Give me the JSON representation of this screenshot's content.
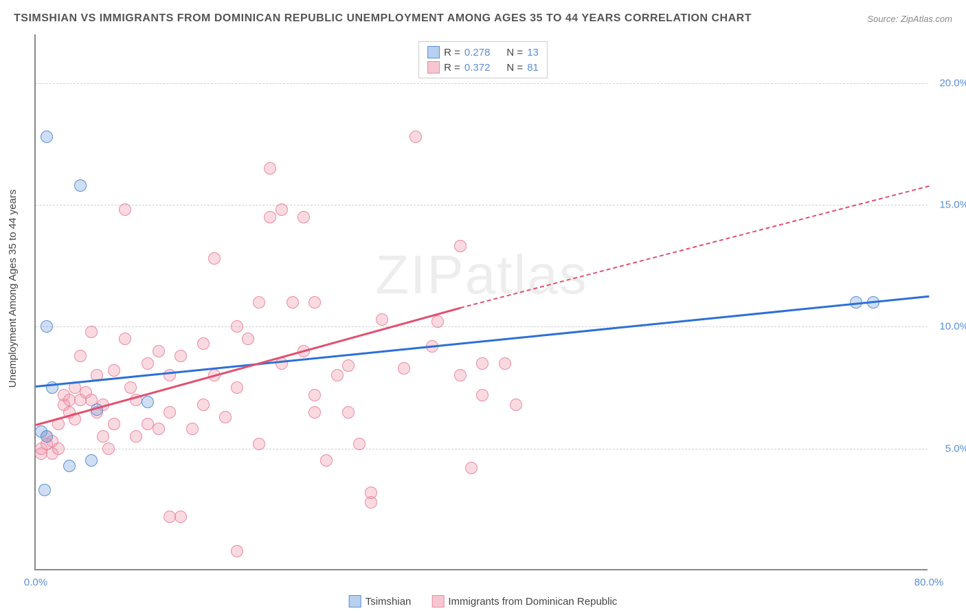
{
  "title": "TSIMSHIAN VS IMMIGRANTS FROM DOMINICAN REPUBLIC UNEMPLOYMENT AMONG AGES 35 TO 44 YEARS CORRELATION CHART",
  "source_label": "Source:",
  "source_name": "ZipAtlas.com",
  "y_axis_title": "Unemployment Among Ages 35 to 44 years",
  "watermark": "ZIPatlas",
  "chart": {
    "type": "scatter",
    "xlim": [
      0,
      80
    ],
    "ylim": [
      0,
      22
    ],
    "x_ticks": [
      0,
      80
    ],
    "x_tick_labels": [
      "0.0%",
      "80.0%"
    ],
    "y_ticks": [
      5,
      10,
      15,
      20
    ],
    "y_tick_labels": [
      "5.0%",
      "10.0%",
      "15.0%",
      "20.0%"
    ],
    "background_color": "#ffffff",
    "grid_color": "#d0d0d0",
    "series": [
      {
        "name": "Tsimshian",
        "R": "0.278",
        "N": "13",
        "marker_fill": "rgba(120,160,220,0.35)",
        "marker_stroke": "#5b8fd6",
        "swatch_fill": "#b8d0ef",
        "swatch_border": "#5b8fd6",
        "trend_color": "#2d70d6",
        "trend": {
          "x1": 0,
          "y1": 7.6,
          "x2": 80,
          "y2": 11.3
        },
        "points": [
          [
            1.0,
            17.8
          ],
          [
            4.0,
            15.8
          ],
          [
            1.0,
            10.0
          ],
          [
            1.5,
            7.5
          ],
          [
            0.5,
            5.7
          ],
          [
            1.0,
            5.5
          ],
          [
            3.0,
            4.3
          ],
          [
            5.0,
            4.5
          ],
          [
            0.8,
            3.3
          ],
          [
            10.0,
            6.9
          ],
          [
            5.5,
            6.6
          ],
          [
            73.5,
            11.0
          ],
          [
            75.0,
            11.0
          ]
        ]
      },
      {
        "name": "Immigrants from Dominican Republic",
        "R": "0.372",
        "N": "81",
        "marker_fill": "rgba(240,150,170,0.35)",
        "marker_stroke": "#e88aa0",
        "swatch_fill": "#f6c7d2",
        "swatch_border": "#e88aa0",
        "trend_color": "#e05070",
        "trend": {
          "x1": 0,
          "y1": 6.0,
          "x2": 38,
          "y2": 10.8
        },
        "trend_dash": {
          "x1": 38,
          "y1": 10.8,
          "x2": 80,
          "y2": 15.8
        },
        "points": [
          [
            0.5,
            4.8
          ],
          [
            0.5,
            5.0
          ],
          [
            1.0,
            5.2
          ],
          [
            1.0,
            5.5
          ],
          [
            1.5,
            5.3
          ],
          [
            1.5,
            4.8
          ],
          [
            2.0,
            6.0
          ],
          [
            2.0,
            5.0
          ],
          [
            2.5,
            6.8
          ],
          [
            2.5,
            7.2
          ],
          [
            3.0,
            6.5
          ],
          [
            3.0,
            7.0
          ],
          [
            3.5,
            7.5
          ],
          [
            3.5,
            6.2
          ],
          [
            4.0,
            7.0
          ],
          [
            4.0,
            8.8
          ],
          [
            4.5,
            7.3
          ],
          [
            5.0,
            7.0
          ],
          [
            5.0,
            9.8
          ],
          [
            5.5,
            6.5
          ],
          [
            5.5,
            8.0
          ],
          [
            6.0,
            6.8
          ],
          [
            6.0,
            5.5
          ],
          [
            7.0,
            8.2
          ],
          [
            7.0,
            6.0
          ],
          [
            8.0,
            9.5
          ],
          [
            8.0,
            14.8
          ],
          [
            9.0,
            7.0
          ],
          [
            9.0,
            5.5
          ],
          [
            10.0,
            8.5
          ],
          [
            10.0,
            6.0
          ],
          [
            11.0,
            9.0
          ],
          [
            11.0,
            5.8
          ],
          [
            12.0,
            2.2
          ],
          [
            12.0,
            6.5
          ],
          [
            13.0,
            8.8
          ],
          [
            13.0,
            2.2
          ],
          [
            14.0,
            5.8
          ],
          [
            15.0,
            9.3
          ],
          [
            15.0,
            6.8
          ],
          [
            16.0,
            12.8
          ],
          [
            16.0,
            8.0
          ],
          [
            17.0,
            6.3
          ],
          [
            18.0,
            0.8
          ],
          [
            18.0,
            10.0
          ],
          [
            19.0,
            9.5
          ],
          [
            20.0,
            11.0
          ],
          [
            20.0,
            5.2
          ],
          [
            21.0,
            14.5
          ],
          [
            21.0,
            16.5
          ],
          [
            22.0,
            8.5
          ],
          [
            22.0,
            14.8
          ],
          [
            23.0,
            11.0
          ],
          [
            24.0,
            14.5
          ],
          [
            24.0,
            9.0
          ],
          [
            25.0,
            11.0
          ],
          [
            25.0,
            6.5
          ],
          [
            26.0,
            4.5
          ],
          [
            27.0,
            8.0
          ],
          [
            28.0,
            8.4
          ],
          [
            28.0,
            6.5
          ],
          [
            29.0,
            5.2
          ],
          [
            30.0,
            2.8
          ],
          [
            30.0,
            3.2
          ],
          [
            31.0,
            10.3
          ],
          [
            33.0,
            8.3
          ],
          [
            34.0,
            17.8
          ],
          [
            35.5,
            9.2
          ],
          [
            36.0,
            10.2
          ],
          [
            38.0,
            13.3
          ],
          [
            38.0,
            8.0
          ],
          [
            39.0,
            4.2
          ],
          [
            40.0,
            7.2
          ],
          [
            42.0,
            8.5
          ],
          [
            43.0,
            6.8
          ],
          [
            40.0,
            8.5
          ],
          [
            25.0,
            7.2
          ],
          [
            18.0,
            7.5
          ],
          [
            12.0,
            8.0
          ],
          [
            6.5,
            5.0
          ],
          [
            8.5,
            7.5
          ]
        ]
      }
    ]
  },
  "legend_top": {
    "r_label": "R =",
    "n_label": "N ="
  },
  "legend_bottom": {
    "items": [
      "Tsimshian",
      "Immigrants from Dominican Republic"
    ]
  }
}
